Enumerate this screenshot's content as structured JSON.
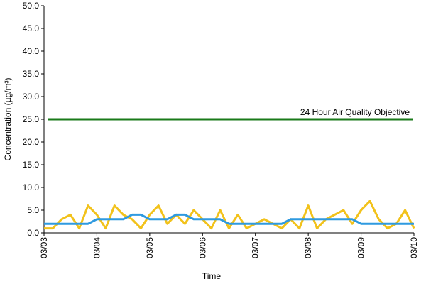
{
  "chart_data": {
    "type": "line",
    "xlabel": "Time",
    "ylabel": "Concentration (µg/m³)",
    "categories": [
      "03/03",
      null,
      null,
      null,
      null,
      null,
      "03/04",
      null,
      null,
      null,
      null,
      null,
      "03/05",
      null,
      null,
      null,
      null,
      null,
      "03/06",
      null,
      null,
      null,
      null,
      null,
      "03/07",
      null,
      null,
      null,
      null,
      null,
      "03/08",
      null,
      null,
      null,
      null,
      null,
      "03/09",
      null,
      null,
      null,
      null,
      null,
      "03/10"
    ],
    "series": [
      {
        "color": "#f2c21b",
        "values": [
          1,
          1,
          3,
          4,
          1,
          6,
          4,
          1,
          6,
          4,
          3,
          1,
          4,
          6,
          2,
          4,
          2,
          5,
          3,
          1,
          5,
          1,
          4,
          1,
          2,
          3,
          2,
          1,
          3,
          1,
          6,
          1,
          3,
          4,
          5,
          2,
          5,
          7,
          3,
          1,
          2,
          5,
          1
        ]
      },
      {
        "color": "#2f9ae0",
        "values": [
          2,
          2,
          2,
          2,
          2,
          2,
          3,
          3,
          3,
          3,
          4,
          4,
          3,
          3,
          3,
          4,
          4,
          3,
          3,
          3,
          3,
          2,
          2,
          2,
          2,
          2,
          2,
          2,
          3,
          3,
          3,
          3,
          3,
          3,
          3,
          3,
          2,
          2,
          2,
          2,
          2,
          2,
          2
        ]
      }
    ],
    "objective": {
      "value": 25,
      "label": "24 Hour Air Quality Objective",
      "color": "#1a7a1a"
    },
    "ylim": [
      0,
      50
    ],
    "yticks": [
      {
        "value": 0,
        "label": "0.0"
      },
      {
        "value": 5,
        "label": "5.0"
      },
      {
        "value": 10,
        "label": "10.0"
      },
      {
        "value": 15,
        "label": "15.0"
      },
      {
        "value": 20,
        "label": "20.0"
      },
      {
        "value": 25,
        "label": "25.0"
      },
      {
        "value": 30,
        "label": "30.0"
      },
      {
        "value": 35,
        "label": "35.0"
      },
      {
        "value": 40,
        "label": "40.0"
      },
      {
        "value": 45,
        "label": "45.0"
      },
      {
        "value": 50,
        "label": "50.0"
      }
    ],
    "grid": false
  }
}
